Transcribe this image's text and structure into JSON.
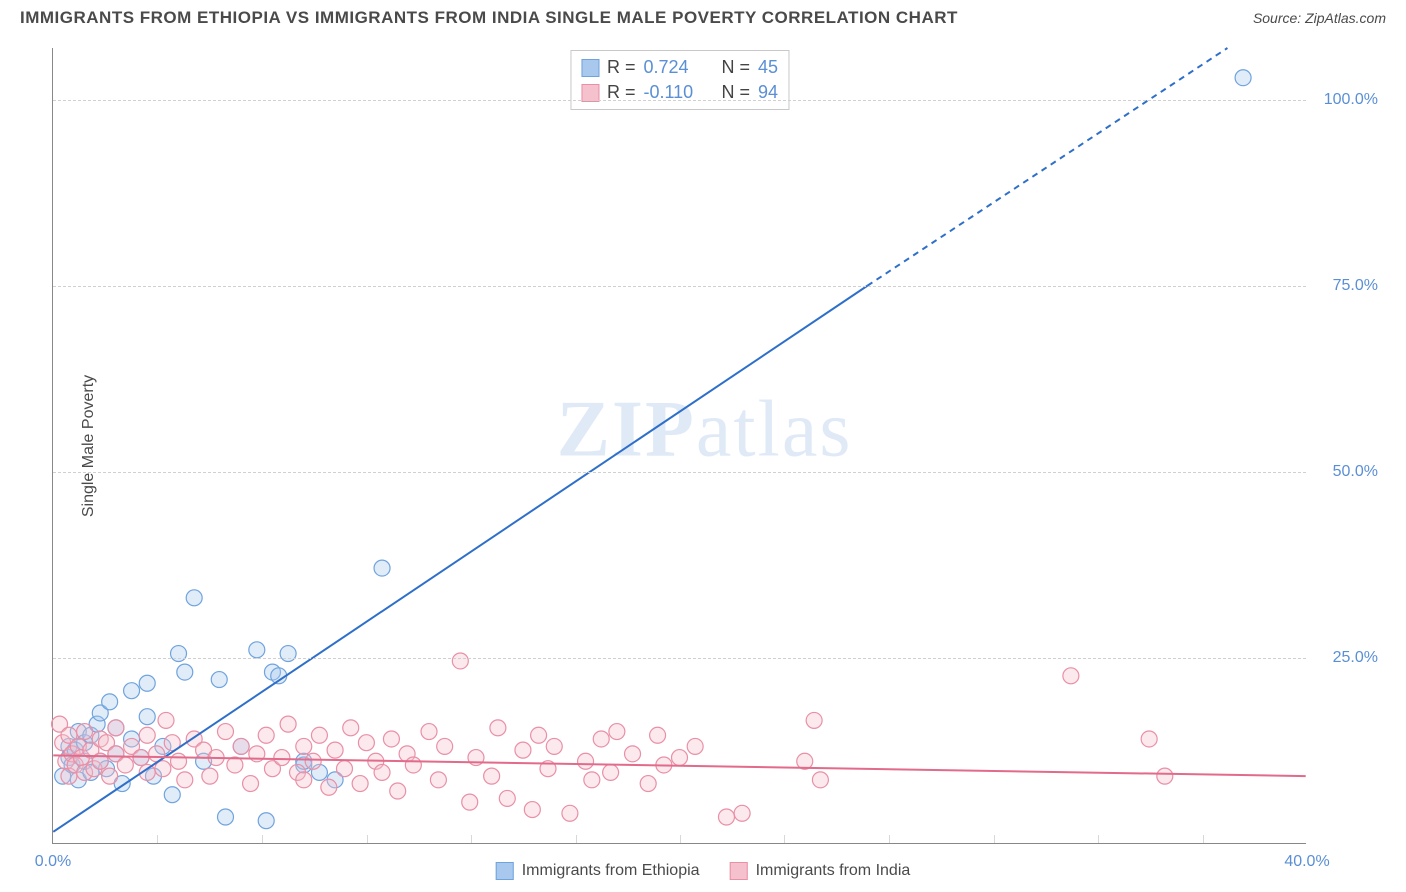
{
  "title": "IMMIGRANTS FROM ETHIOPIA VS IMMIGRANTS FROM INDIA SINGLE MALE POVERTY CORRELATION CHART",
  "source": "Source: ZipAtlas.com",
  "watermark": "ZIPatlas",
  "ylabel": "Single Male Poverty",
  "chart": {
    "type": "scatter-correlation",
    "background_color": "#ffffff",
    "grid_color": "#d0d0d0",
    "axis_color": "#888888",
    "tick_label_color": "#5a8fd6",
    "tick_fontsize": 16,
    "xlim": [
      0,
      40
    ],
    "ylim": [
      0,
      107
    ],
    "xticks": [
      0,
      40
    ],
    "xtick_labels": [
      "0.0%",
      "40.0%"
    ],
    "x_minor_ticks": [
      3.33,
      6.67,
      10,
      13.33,
      16.67,
      20,
      23.33,
      26.67,
      30,
      33.33,
      36.67
    ],
    "yticks": [
      25,
      50,
      75,
      100
    ],
    "ytick_labels": [
      "25.0%",
      "50.0%",
      "75.0%",
      "100.0%"
    ],
    "marker_radius": 8,
    "marker_fill_opacity": 0.35,
    "marker_stroke_width": 1.2,
    "line_width": 2
  },
  "series": [
    {
      "name": "Immigrants from Ethiopia",
      "color_fill": "#a8c8ee",
      "color_stroke": "#6fa3de",
      "line_color": "#2e6fc9",
      "r": "0.724",
      "n": "45",
      "trend": {
        "x1": 0,
        "y1": 1.5,
        "x2": 26,
        "y2": 75,
        "dash_after_x": 26,
        "x3": 37.5,
        "y3": 107
      },
      "points": [
        [
          0.3,
          9.0
        ],
        [
          0.5,
          11.5
        ],
        [
          0.5,
          13.0
        ],
        [
          0.6,
          10.5
        ],
        [
          0.7,
          12.5
        ],
        [
          0.8,
          15.0
        ],
        [
          0.8,
          8.5
        ],
        [
          1.0,
          11.0
        ],
        [
          1.0,
          13.5
        ],
        [
          1.2,
          9.5
        ],
        [
          1.2,
          14.5
        ],
        [
          1.4,
          16.0
        ],
        [
          1.5,
          11.0
        ],
        [
          1.5,
          17.5
        ],
        [
          1.7,
          10.0
        ],
        [
          1.8,
          19.0
        ],
        [
          2.0,
          12.0
        ],
        [
          2.0,
          15.5
        ],
        [
          2.2,
          8.0
        ],
        [
          2.5,
          20.5
        ],
        [
          2.5,
          14.0
        ],
        [
          2.8,
          11.5
        ],
        [
          3.0,
          21.5
        ],
        [
          3.0,
          17.0
        ],
        [
          3.2,
          9.0
        ],
        [
          3.5,
          13.0
        ],
        [
          3.8,
          6.5
        ],
        [
          4.0,
          25.5
        ],
        [
          4.2,
          23.0
        ],
        [
          4.5,
          33.0
        ],
        [
          4.8,
          11.0
        ],
        [
          5.3,
          22.0
        ],
        [
          5.5,
          3.5
        ],
        [
          6.0,
          13.0
        ],
        [
          6.5,
          26.0
        ],
        [
          6.8,
          3.0
        ],
        [
          7.0,
          23.0
        ],
        [
          7.2,
          22.5
        ],
        [
          7.5,
          25.5
        ],
        [
          8.0,
          10.5
        ],
        [
          8.0,
          11.0
        ],
        [
          10.5,
          37.0
        ],
        [
          8.5,
          9.5
        ],
        [
          9.0,
          8.5
        ],
        [
          38.0,
          103.0
        ]
      ]
    },
    {
      "name": "Immigrants from India",
      "color_fill": "#f4c1cc",
      "color_stroke": "#e98fa6",
      "line_color": "#e26a8a",
      "r": "-0.110",
      "n": "94",
      "trend": {
        "x1": 0,
        "y1": 11.8,
        "x2": 40,
        "y2": 9.0
      },
      "points": [
        [
          0.2,
          16.0
        ],
        [
          0.3,
          13.5
        ],
        [
          0.4,
          11.0
        ],
        [
          0.5,
          9.0
        ],
        [
          0.5,
          14.5
        ],
        [
          0.6,
          12.0
        ],
        [
          0.7,
          10.5
        ],
        [
          0.8,
          13.0
        ],
        [
          0.9,
          11.5
        ],
        [
          1.0,
          15.0
        ],
        [
          1.0,
          9.5
        ],
        [
          1.2,
          12.5
        ],
        [
          1.3,
          10.0
        ],
        [
          1.5,
          14.0
        ],
        [
          1.5,
          11.0
        ],
        [
          1.7,
          13.5
        ],
        [
          1.8,
          9.0
        ],
        [
          2.0,
          12.0
        ],
        [
          2.0,
          15.5
        ],
        [
          2.3,
          10.5
        ],
        [
          2.5,
          13.0
        ],
        [
          2.8,
          11.5
        ],
        [
          3.0,
          14.5
        ],
        [
          3.0,
          9.5
        ],
        [
          3.3,
          12.0
        ],
        [
          3.5,
          10.0
        ],
        [
          3.6,
          16.5
        ],
        [
          3.8,
          13.5
        ],
        [
          4.0,
          11.0
        ],
        [
          4.2,
          8.5
        ],
        [
          4.5,
          14.0
        ],
        [
          4.8,
          12.5
        ],
        [
          5.0,
          9.0
        ],
        [
          5.2,
          11.5
        ],
        [
          5.5,
          15.0
        ],
        [
          5.8,
          10.5
        ],
        [
          6.0,
          13.0
        ],
        [
          6.3,
          8.0
        ],
        [
          6.5,
          12.0
        ],
        [
          6.8,
          14.5
        ],
        [
          7.0,
          10.0
        ],
        [
          7.3,
          11.5
        ],
        [
          7.5,
          16.0
        ],
        [
          7.8,
          9.5
        ],
        [
          8.0,
          13.0
        ],
        [
          8.0,
          8.5
        ],
        [
          8.3,
          11.0
        ],
        [
          8.5,
          14.5
        ],
        [
          8.8,
          7.5
        ],
        [
          9.0,
          12.5
        ],
        [
          9.3,
          10.0
        ],
        [
          9.5,
          15.5
        ],
        [
          9.8,
          8.0
        ],
        [
          10.0,
          13.5
        ],
        [
          10.3,
          11.0
        ],
        [
          10.5,
          9.5
        ],
        [
          10.8,
          14.0
        ],
        [
          11.0,
          7.0
        ],
        [
          11.3,
          12.0
        ],
        [
          11.5,
          10.5
        ],
        [
          12.0,
          15.0
        ],
        [
          12.3,
          8.5
        ],
        [
          12.5,
          13.0
        ],
        [
          13.0,
          24.5
        ],
        [
          13.3,
          5.5
        ],
        [
          13.5,
          11.5
        ],
        [
          14.0,
          9.0
        ],
        [
          14.2,
          15.5
        ],
        [
          14.5,
          6.0
        ],
        [
          15.0,
          12.5
        ],
        [
          15.3,
          4.5
        ],
        [
          15.5,
          14.5
        ],
        [
          15.8,
          10.0
        ],
        [
          16.0,
          13.0
        ],
        [
          16.5,
          4.0
        ],
        [
          17.0,
          11.0
        ],
        [
          17.2,
          8.5
        ],
        [
          17.5,
          14.0
        ],
        [
          17.8,
          9.5
        ],
        [
          18.0,
          15.0
        ],
        [
          18.5,
          12.0
        ],
        [
          19.0,
          8.0
        ],
        [
          19.3,
          14.5
        ],
        [
          19.5,
          10.5
        ],
        [
          20.0,
          11.5
        ],
        [
          20.5,
          13.0
        ],
        [
          21.5,
          3.5
        ],
        [
          22.0,
          4.0
        ],
        [
          24.0,
          11.0
        ],
        [
          24.3,
          16.5
        ],
        [
          24.5,
          8.5
        ],
        [
          32.5,
          22.5
        ],
        [
          35.0,
          14.0
        ],
        [
          35.5,
          9.0
        ]
      ]
    }
  ],
  "legend_top_labels": {
    "r": "R =",
    "n": "N ="
  },
  "legend_bottom": [
    {
      "swatch_fill": "#a8c8ee",
      "swatch_stroke": "#6fa3de",
      "label": "Immigrants from Ethiopia"
    },
    {
      "swatch_fill": "#f4c1cc",
      "swatch_stroke": "#e98fa6",
      "label": "Immigrants from India"
    }
  ]
}
